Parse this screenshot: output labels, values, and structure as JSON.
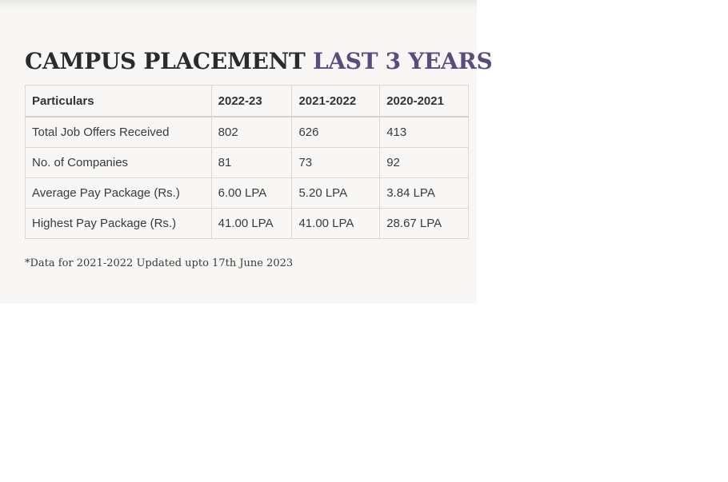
{
  "heading": {
    "part1": "CAMPUS PLACEMENT",
    "part2": "LAST 3 YEARS"
  },
  "colors": {
    "heading_dark": "#2b2b2b",
    "heading_accent": "#5a4c7e",
    "panel_background": "#f8f7f5"
  },
  "table": {
    "headers": [
      "Particulars",
      "2022-23",
      "2021-2022",
      "2020-2021"
    ],
    "rows": [
      [
        "Total Job Offers Received",
        "802",
        "626",
        "413"
      ],
      [
        "No. of Companies",
        "81",
        "73",
        "92"
      ],
      [
        "Average Pay Package (Rs.)",
        "6.00 LPA",
        "5.20 LPA",
        "3.84 LPA"
      ],
      [
        "Highest Pay Package (Rs.)",
        "41.00 LPA",
        "41.00 LPA",
        "28.67 LPA"
      ]
    ]
  },
  "footnote": "*Data for 2021-2022 Updated upto 17th June 2023"
}
